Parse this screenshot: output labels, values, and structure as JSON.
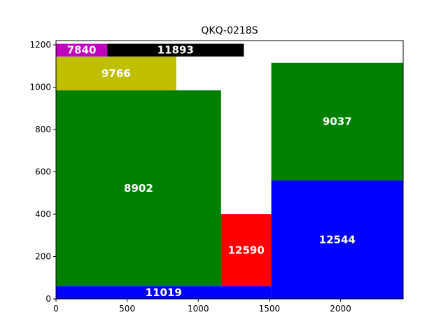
{
  "chart_data": {
    "type": "treemap",
    "title": "QKQ-0218S",
    "xlabel": "",
    "ylabel": "",
    "xlim": [
      0,
      2440
    ],
    "ylim": [
      0,
      1220
    ],
    "x_ticks": [
      "0",
      "500",
      "1000",
      "1500",
      "2000"
    ],
    "y_ticks": [
      "0",
      "200",
      "400",
      "600",
      "800",
      "1000",
      "1200"
    ],
    "grid": false,
    "rects": [
      {
        "label": "11019",
        "x0": 0,
        "y0": 0,
        "x1": 1513,
        "y1": 60,
        "color": "#0000ff"
      },
      {
        "label": "8902",
        "x0": 0,
        "y0": 60,
        "x1": 1160,
        "y1": 985,
        "color": "#008000"
      },
      {
        "label": "12590",
        "x0": 1160,
        "y0": 60,
        "x1": 1513,
        "y1": 400,
        "color": "#ff0000"
      },
      {
        "label": "9766",
        "x0": 0,
        "y0": 985,
        "x1": 845,
        "y1": 1145,
        "color": "#bfbf00"
      },
      {
        "label": "7840",
        "x0": 0,
        "y0": 1145,
        "x1": 360,
        "y1": 1205,
        "color": "#bf00bf"
      },
      {
        "label": "11893",
        "x0": 360,
        "y0": 1145,
        "x1": 1320,
        "y1": 1205,
        "color": "#000000"
      },
      {
        "label": "12544",
        "x0": 1513,
        "y0": 0,
        "x1": 2440,
        "y1": 560,
        "color": "#0000ff"
      },
      {
        "label": "9037",
        "x0": 1513,
        "y0": 560,
        "x1": 2440,
        "y1": 1115,
        "color": "#008000"
      }
    ]
  }
}
